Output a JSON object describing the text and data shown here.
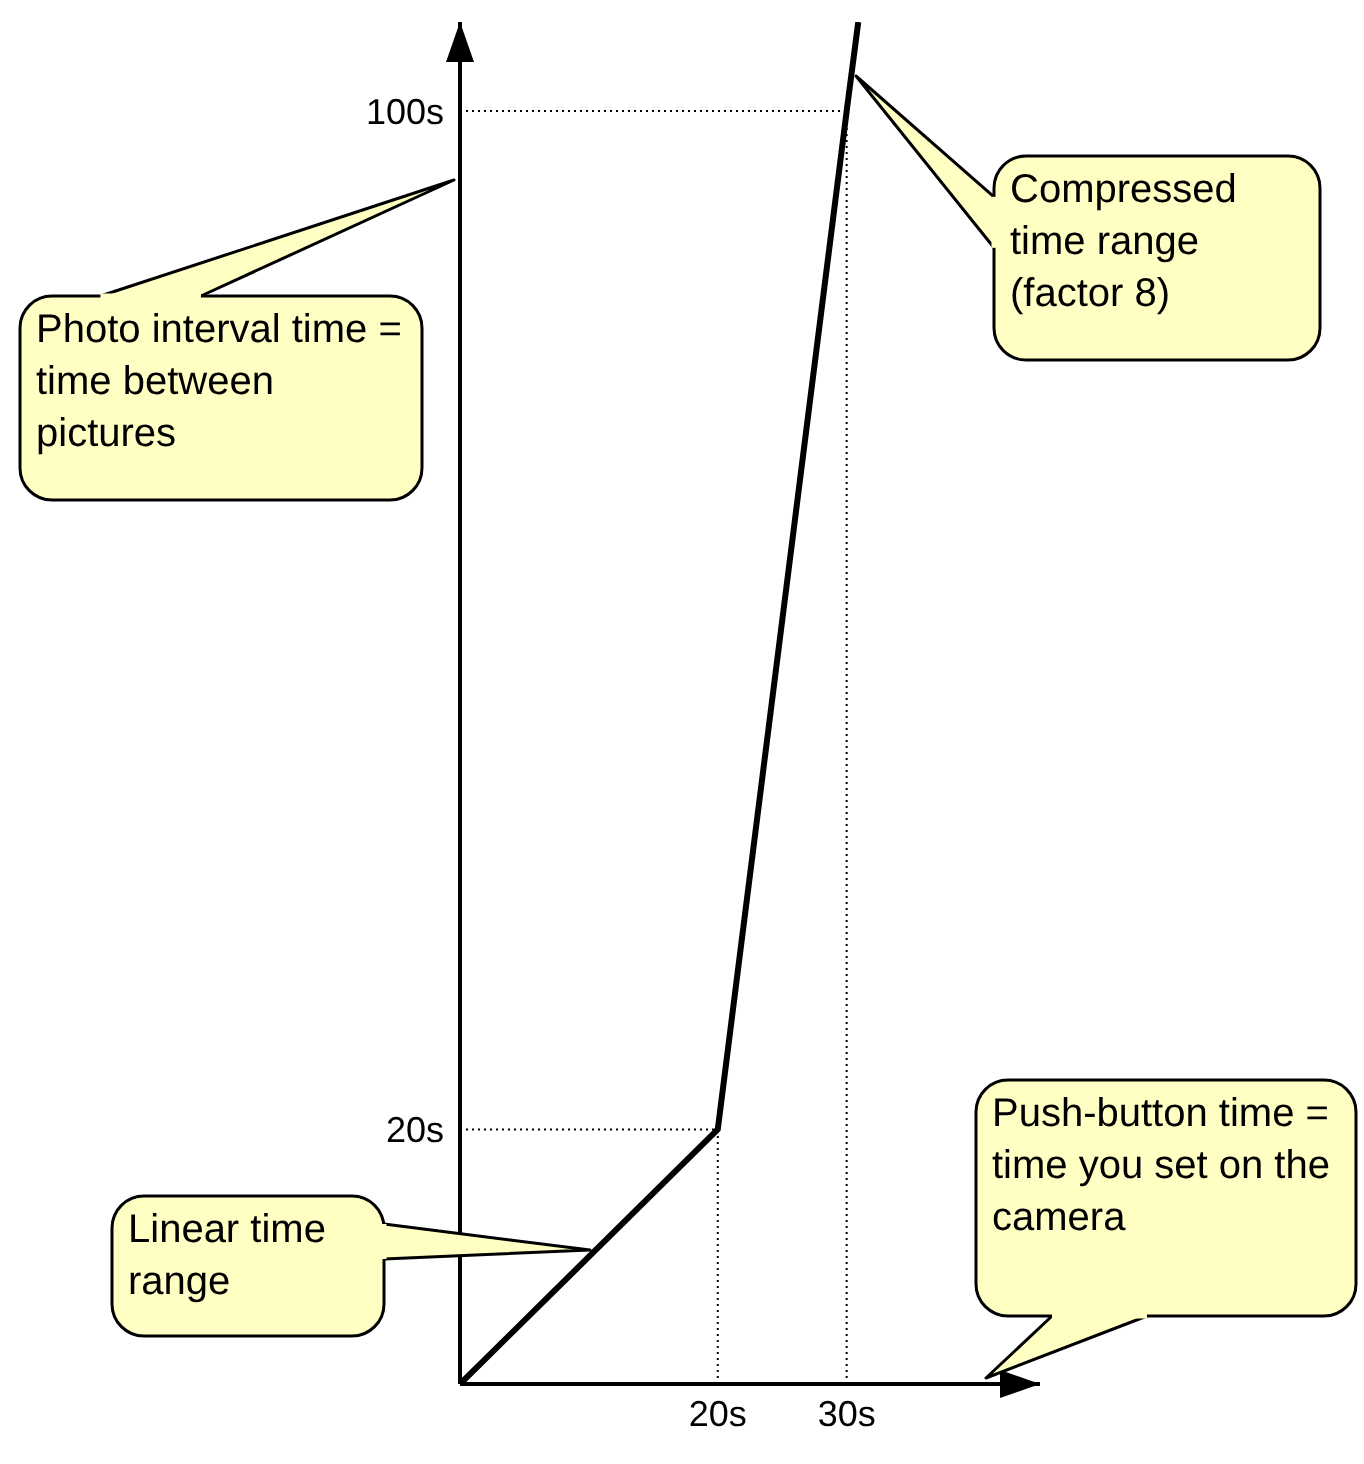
{
  "chart_data": {
    "type": "line",
    "x": [
      0,
      20,
      30,
      30.9
    ],
    "series": [
      {
        "color": "#000000",
        "values": [
          0,
          20,
          100,
          107
        ]
      }
    ],
    "xlim": [
      0,
      45
    ],
    "ylim": [
      0,
      107
    ],
    "xticks": [
      {
        "value": 20,
        "label": "20s"
      },
      {
        "value": 30,
        "label": "30s"
      }
    ],
    "yticks": [
      {
        "value": 20,
        "label": "20s"
      },
      {
        "value": 100,
        "label": "100s"
      }
    ],
    "marker": "none",
    "line_style": "solid",
    "ref_lines": [
      {
        "axis": "y",
        "value": 20,
        "line_style": "dotted"
      },
      {
        "axis": "y",
        "value": 100,
        "line_style": "dotted"
      },
      {
        "axis": "x",
        "value": 20,
        "line_style": "dotted"
      },
      {
        "axis": "x",
        "value": 30,
        "line_style": "dotted"
      }
    ],
    "annotations": [
      "Photo interval time = time between pictures",
      "Compressed time range (factor 8)",
      "Linear time range",
      "Push-button time = time you set on the camera"
    ]
  }
}
